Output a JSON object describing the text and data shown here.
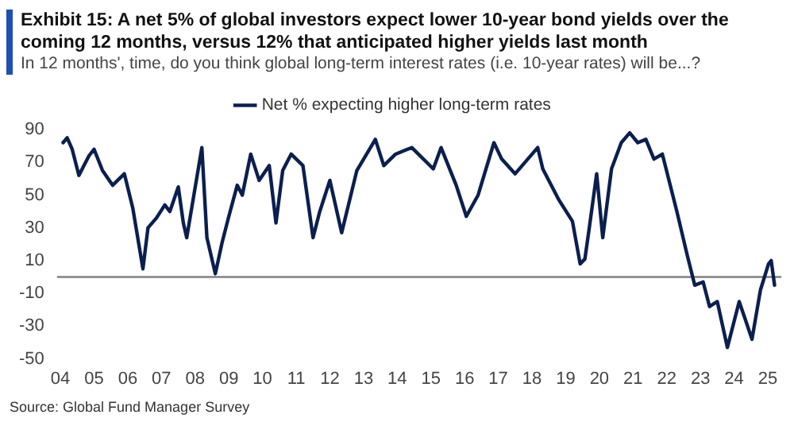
{
  "chart_data": {
    "type": "line",
    "title": "Exhibit 15: A net 5% of global investors expect lower 10-year bond yields over the coming 12 months, versus 12% that anticipated higher yields last month",
    "subtitle": "In 12 months', time, do you think global long-term interest rates (i.e. 10-year rates) will be...?",
    "annotations": [
      "Source: Global Fund Manager Survey"
    ],
    "series": [
      {
        "name": "Net % expecting higher long-term rates",
        "color": "#0b1f4f",
        "x": [
          2004.08,
          2004.2,
          2004.35,
          2004.55,
          2004.7,
          2004.85,
          2005.0,
          2005.25,
          2005.55,
          2005.9,
          2006.15,
          2006.45,
          2006.6,
          2006.85,
          2007.1,
          2007.25,
          2007.5,
          2007.65,
          2007.75,
          2008.2,
          2008.35,
          2008.6,
          2008.8,
          2009.0,
          2009.25,
          2009.4,
          2009.65,
          2009.9,
          2010.2,
          2010.4,
          2010.6,
          2010.85,
          2011.2,
          2011.5,
          2011.7,
          2012.0,
          2012.35,
          2012.8,
          2013.35,
          2013.6,
          2013.95,
          2014.43,
          2015.07,
          2015.3,
          2015.75,
          2016.05,
          2016.4,
          2016.87,
          2017.1,
          2017.5,
          2018.17,
          2018.32,
          2018.8,
          2019.2,
          2019.43,
          2019.57,
          2019.68,
          2019.92,
          2020.1,
          2020.36,
          2020.65,
          2020.9,
          2021.14,
          2021.38,
          2021.62,
          2021.87,
          2022.3,
          2022.6,
          2022.83,
          2023.08,
          2023.27,
          2023.5,
          2023.8,
          2024.15,
          2024.3,
          2024.53,
          2024.78,
          2025.02,
          2025.1,
          2025.2
        ],
        "values": [
          82,
          85,
          78,
          62,
          68,
          74,
          78,
          65,
          56,
          63,
          42,
          5,
          30,
          36,
          44,
          40,
          55,
          33,
          24,
          79,
          24,
          2,
          21,
          37,
          56,
          50,
          75,
          59,
          68,
          33,
          65,
          75,
          68,
          24,
          40,
          59,
          27,
          65,
          84,
          68,
          75,
          79,
          66,
          79,
          56,
          37,
          50,
          82,
          72,
          63,
          79,
          66,
          47,
          34,
          8,
          11,
          27,
          63,
          24,
          66,
          82,
          88,
          82,
          84,
          72,
          75,
          40,
          14,
          -5,
          -3,
          -18,
          -15,
          -43,
          -15,
          -24,
          -38,
          -8,
          8,
          10,
          -5
        ]
      }
    ],
    "xlim": [
      2003.9,
      2025.4
    ],
    "xticks": [
      {
        "value": 2004,
        "label": "04"
      },
      {
        "value": 2005,
        "label": "05"
      },
      {
        "value": 2006,
        "label": "06"
      },
      {
        "value": 2007,
        "label": "07"
      },
      {
        "value": 2008,
        "label": "08"
      },
      {
        "value": 2009,
        "label": "09"
      },
      {
        "value": 2010,
        "label": "10"
      },
      {
        "value": 2011,
        "label": "11"
      },
      {
        "value": 2012,
        "label": "12"
      },
      {
        "value": 2013,
        "label": "13"
      },
      {
        "value": 2014,
        "label": "14"
      },
      {
        "value": 2015,
        "label": "15"
      },
      {
        "value": 2016,
        "label": "16"
      },
      {
        "value": 2017,
        "label": "17"
      },
      {
        "value": 2018,
        "label": "18"
      },
      {
        "value": 2019,
        "label": "19"
      },
      {
        "value": 2020,
        "label": "20"
      },
      {
        "value": 2021,
        "label": "21"
      },
      {
        "value": 2022,
        "label": "22"
      },
      {
        "value": 2023,
        "label": "23"
      },
      {
        "value": 2024,
        "label": "24"
      },
      {
        "value": 2025,
        "label": "25"
      }
    ],
    "ylim": [
      -50,
      90
    ],
    "yticks": [
      -50,
      -30,
      -10,
      10,
      30,
      50,
      70,
      90
    ],
    "ref_lines": [
      {
        "axis": "y",
        "value": 0,
        "color": "#808080"
      }
    ],
    "grid": false,
    "legend": "top",
    "marker": "none"
  }
}
